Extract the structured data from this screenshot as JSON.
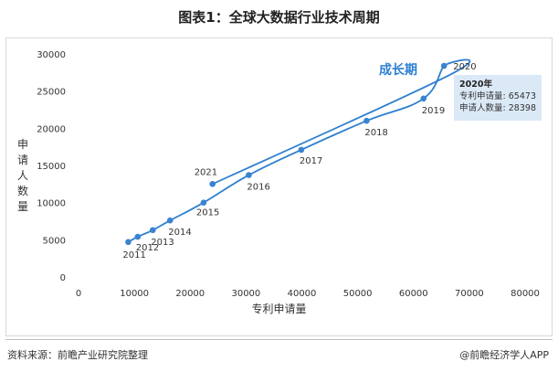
{
  "title": "图表1：全球大数据行业技术周期",
  "footer": {
    "source": "资料来源：前瞻产业研究院整理",
    "brand": "@前瞻经济学人APP"
  },
  "colors": {
    "line": "#2d7fd0",
    "point": "#3b82cf",
    "tooltip_bg": "#dbe9f7"
  },
  "phase_label": "成长期",
  "tooltip": {
    "year": "2020年",
    "rows": [
      {
        "label": "专利申请量:",
        "value": "65473"
      },
      {
        "label": "申请人数量:",
        "value": "28398"
      }
    ]
  },
  "chart_data": {
    "type": "scatter",
    "title": "图表1：全球大数据行业技术周期",
    "xlabel": "专利申请量",
    "ylabel": "申请人数量",
    "xlim": [
      0,
      80000
    ],
    "ylim": [
      0,
      30000
    ],
    "x_ticks": [
      0,
      10000,
      20000,
      30000,
      40000,
      50000,
      60000,
      70000,
      80000
    ],
    "y_ticks": [
      0,
      5000,
      10000,
      15000,
      20000,
      25000,
      30000
    ],
    "x_tick_labels": [
      "0",
      "10000",
      "20000",
      "30000",
      "40000",
      "50000",
      "60000",
      "70000",
      "80000"
    ],
    "y_tick_labels": [
      "0",
      "5000",
      "10000",
      "15000",
      "20000",
      "25000",
      "30000"
    ],
    "connected": true,
    "grid": false,
    "points": [
      {
        "label": "2011",
        "x": 8900,
        "y": 4700
      },
      {
        "label": "2012",
        "x": 10600,
        "y": 5400
      },
      {
        "label": "2013",
        "x": 13300,
        "y": 6300
      },
      {
        "label": "2014",
        "x": 16400,
        "y": 7600
      },
      {
        "label": "2015",
        "x": 22400,
        "y": 10000
      },
      {
        "label": "2016",
        "x": 30500,
        "y": 13700
      },
      {
        "label": "2017",
        "x": 39900,
        "y": 17100
      },
      {
        "label": "2018",
        "x": 51600,
        "y": 21000
      },
      {
        "label": "2019",
        "x": 61800,
        "y": 24000
      },
      {
        "label": "2020",
        "x": 65473,
        "y": 28398
      },
      {
        "label": "2021",
        "x": 24000,
        "y": 12500
      }
    ]
  }
}
